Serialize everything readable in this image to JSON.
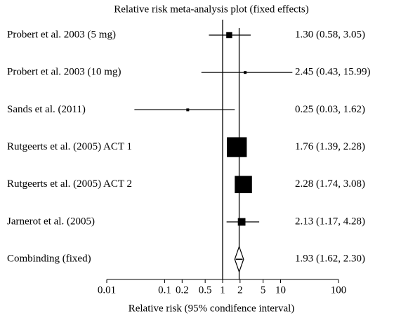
{
  "chart_data": {
    "type": "forest",
    "title": "Relative risk meta-analysis plot (fixed effects)",
    "x_label": "Relative risk (95% condifence interval)",
    "log_x": true,
    "xlim": [
      0.01,
      100
    ],
    "xticks": [
      0.01,
      0.1,
      0.2,
      0.5,
      1,
      2,
      5,
      10,
      100
    ],
    "color": "#000000",
    "categories": [
      "Probert et al. 2003 (5 mg)",
      "Probert et al. 2003 (10 mg)",
      "Sands et al. (2011)",
      "Rutgeerts et al. (2005) ACT 1",
      "Rutgeerts et al. (2005) ACT 2",
      "Jarnerot et al. (2005)"
    ],
    "values": [
      1.3,
      2.45,
      0.25,
      1.76,
      2.28,
      2.13
    ],
    "lower": [
      0.58,
      0.43,
      0.03,
      1.39,
      1.74,
      1.17
    ],
    "upper": [
      3.05,
      15.99,
      1.62,
      2.28,
      3.08,
      4.28
    ],
    "value_labels": [
      "1.30 (0.58, 3.05)",
      "2.45 (0.43, 15.99)",
      "0.25 (0.03, 1.62)",
      "1.76 (1.39, 2.28)",
      "2.28 (1.74, 3.08)",
      "2.13 (1.17, 4.28)"
    ],
    "pooled": {
      "name": "Combinding (fixed)",
      "value": 1.93,
      "lower": 1.62,
      "upper": 2.3,
      "value_label": "1.93 (1.62, 2.30)"
    }
  }
}
